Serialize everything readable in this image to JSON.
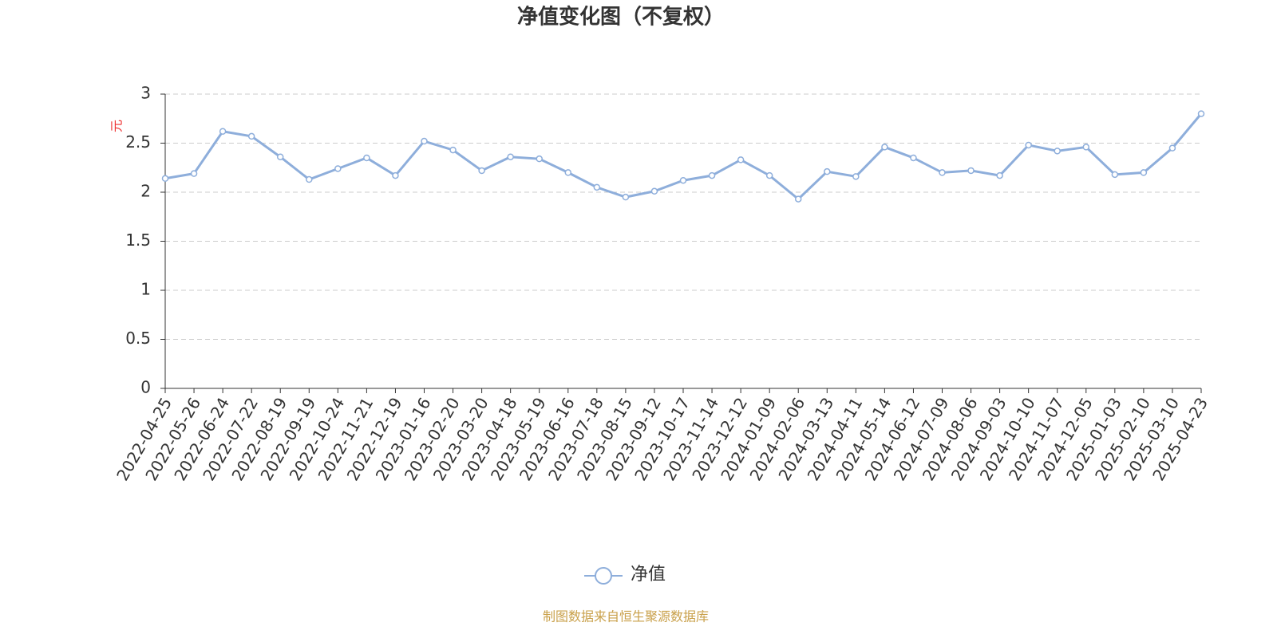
{
  "chart_data": {
    "type": "line",
    "title": "净值变化图（不复权）",
    "y_label": "元",
    "source": "制图数据来自恒生聚源数据库",
    "categories": [
      "2022-04-25",
      "2022-05-26",
      "2022-06-24",
      "2022-07-22",
      "2022-08-19",
      "2022-09-19",
      "2022-10-24",
      "2022-11-21",
      "2022-12-19",
      "2023-01-16",
      "2023-02-20",
      "2023-03-20",
      "2023-04-18",
      "2023-05-19",
      "2023-06-16",
      "2023-07-18",
      "2023-08-15",
      "2023-09-12",
      "2023-10-17",
      "2023-11-14",
      "2023-12-12",
      "2024-01-09",
      "2024-02-06",
      "2024-03-13",
      "2024-04-11",
      "2024-05-14",
      "2024-06-12",
      "2024-07-09",
      "2024-08-06",
      "2024-09-03",
      "2024-10-10",
      "2024-11-07",
      "2024-12-05",
      "2025-01-03",
      "2025-02-10",
      "2025-03-10",
      "2025-04-23"
    ],
    "series": [
      {
        "name": "净值",
        "color": "#8eaedb",
        "values": [
          2.14,
          2.19,
          2.62,
          2.57,
          2.36,
          2.13,
          2.24,
          2.35,
          2.17,
          2.52,
          2.43,
          2.22,
          2.36,
          2.34,
          2.2,
          2.05,
          1.95,
          2.01,
          2.12,
          2.17,
          2.33,
          2.17,
          1.93,
          2.21,
          2.16,
          2.46,
          2.35,
          2.2,
          2.22,
          2.17,
          2.48,
          2.42,
          2.46,
          2.18,
          2.2,
          2.45,
          2.8
        ]
      }
    ],
    "ylim": [
      0,
      3
    ],
    "yticks": [
      0,
      0.5,
      1,
      1.5,
      2,
      2.5,
      3
    ],
    "grid": true
  }
}
